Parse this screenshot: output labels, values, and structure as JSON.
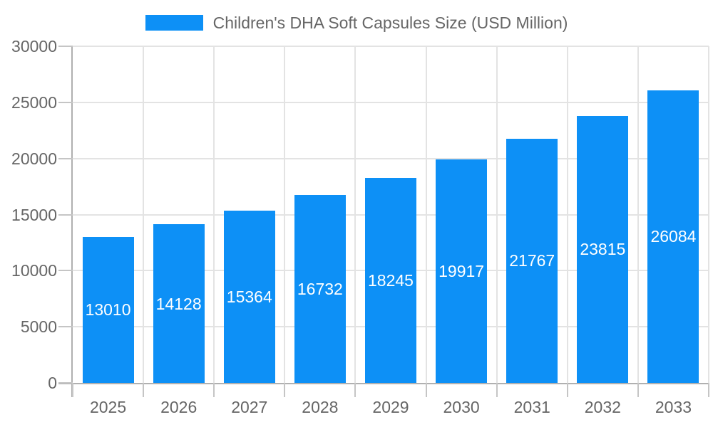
{
  "legend": {
    "label": "Children's DHA Soft Capsules Size (USD Million)"
  },
  "chart_data": {
    "type": "bar",
    "title": "Children's DHA Soft Capsules Size (USD Million)",
    "categories": [
      "2025",
      "2026",
      "2027",
      "2028",
      "2029",
      "2030",
      "2031",
      "2032",
      "2033"
    ],
    "values": [
      13010,
      14128,
      15364,
      16732,
      18245,
      19917,
      21767,
      23815,
      26084
    ],
    "series": [
      {
        "name": "Children's DHA Soft Capsules Size (USD Million)",
        "values": [
          13010,
          14128,
          15364,
          16732,
          18245,
          19917,
          21767,
          23815,
          26084
        ]
      }
    ],
    "xlabel": "",
    "ylabel": "",
    "ylim": [
      0,
      30000
    ],
    "yticks": [
      0,
      5000,
      10000,
      15000,
      20000,
      25000,
      30000
    ],
    "grid": true,
    "legend_position": "top",
    "value_labels": "inside-center",
    "colors": {
      "bar": "#0d90f6",
      "value_label": "#ffffff",
      "axis_line": "#b0b0b0",
      "grid_line": "#e3e3e3",
      "tick_mark": "#c5c5c5",
      "tick_label": "#666666",
      "legend_text": "#666666"
    }
  }
}
